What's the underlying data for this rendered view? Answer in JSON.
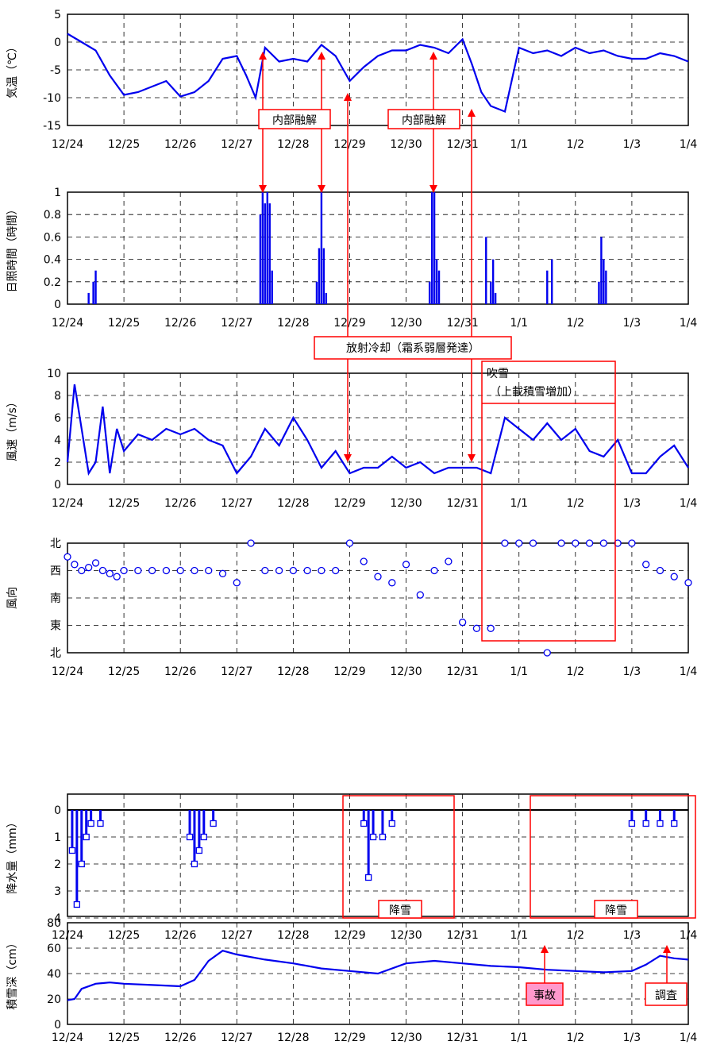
{
  "x_tick_labels": [
    "12/24",
    "12/25",
    "12/26",
    "12/27",
    "12/28",
    "12/29",
    "12/30",
    "12/31",
    "1/1",
    "1/2",
    "1/3",
    "1/4"
  ],
  "colors": {
    "series": "#0000ee",
    "annotation": "#ff0000",
    "accident_fill": "#ff99cc"
  },
  "annotations": {
    "internal_melt_1": "内部融解",
    "internal_melt_2": "内部融解",
    "radiative_cooling": "放射冷却（霜系弱層発達）",
    "blowing_snow_line1": "吹雪",
    "blowing_snow_line2": "（上載積雪増加）",
    "snowfall_1": "降雪",
    "snowfall_2": "降雪",
    "accident": "事故",
    "survey": "調査"
  },
  "chart_data": [
    {
      "id": "temperature",
      "type": "line",
      "ylabel": "気温（℃）",
      "ylim": [
        -15,
        5
      ],
      "yticks": [
        "5",
        "0",
        "-5",
        "-10",
        "-15"
      ],
      "x": [
        "12/24 00:00",
        "12/24 06:00",
        "12/24 12:00",
        "12/24 18:00",
        "12/25 00:00",
        "12/25 06:00",
        "12/25 12:00",
        "12/25 18:00",
        "12/26 00:00",
        "12/26 06:00",
        "12/26 12:00",
        "12/26 18:00",
        "12/27 00:00",
        "12/27 04:00",
        "12/27 08:00",
        "12/27 12:00",
        "12/27 18:00",
        "12/28 00:00",
        "12/28 06:00",
        "12/28 12:00",
        "12/28 18:00",
        "12/29 00:00",
        "12/29 06:00",
        "12/29 12:00",
        "12/29 18:00",
        "12/30 00:00",
        "12/30 06:00",
        "12/30 12:00",
        "12/30 18:00",
        "12/31 00:00",
        "12/31 04:00",
        "12/31 08:00",
        "12/31 12:00",
        "12/31 18:00",
        "1/1 00:00",
        "1/1 06:00",
        "1/1 12:00",
        "1/1 18:00",
        "1/2 00:00",
        "1/2 06:00",
        "1/2 12:00",
        "1/2 18:00",
        "1/3 00:00",
        "1/3 06:00",
        "1/3 12:00",
        "1/3 18:00",
        "1/4 00:00"
      ],
      "y": [
        1.5,
        0,
        -1.5,
        -6,
        -9.5,
        -9,
        -8,
        -7,
        -9.8,
        -9,
        -7,
        -3,
        -2.5,
        -6,
        -10,
        -1,
        -3.5,
        -3,
        -3.5,
        -0.5,
        -2.5,
        -7,
        -4.5,
        -2.5,
        -1.5,
        -1.5,
        -0.5,
        -1,
        -2,
        0.5,
        -4,
        -9,
        -11.5,
        -12.5,
        -1,
        -2,
        -1.5,
        -2.5,
        -1,
        -2,
        -1.5,
        -2.5,
        -3,
        -3,
        -2,
        -2.5,
        -3.5
      ]
    },
    {
      "id": "sunshine",
      "type": "bar",
      "ylabel": "日照時間（時間）",
      "ylim": [
        0,
        1
      ],
      "yticks": [
        "1",
        "0.8",
        "0.6",
        "0.4",
        "0.2",
        "0"
      ],
      "x": [
        "12/24 09:00",
        "12/24 11:00",
        "12/24 12:00",
        "12/27 10:00",
        "12/27 11:00",
        "12/27 12:00",
        "12/27 13:00",
        "12/27 14:00",
        "12/27 15:00",
        "12/28 10:00",
        "12/28 11:00",
        "12/28 12:00",
        "12/28 13:00",
        "12/28 14:00",
        "12/30 10:00",
        "12/30 11:00",
        "12/30 12:00",
        "12/30 13:00",
        "12/30 14:00",
        "12/31 10:00",
        "12/31 12:00",
        "12/31 13:00",
        "12/31 14:00",
        "1/1 12:00",
        "1/1 14:00",
        "1/2 10:00",
        "1/2 11:00",
        "1/2 12:00",
        "1/2 13:00"
      ],
      "y": [
        0.1,
        0.2,
        0.3,
        0.8,
        1,
        0.9,
        1,
        0.9,
        0.3,
        0.2,
        0.5,
        1,
        0.5,
        0.1,
        0.2,
        1,
        1,
        0.4,
        0.3,
        0.6,
        0.2,
        0.4,
        0.1,
        0.3,
        0.4,
        0.2,
        0.6,
        0.4,
        0.3
      ]
    },
    {
      "id": "wind_speed",
      "type": "line",
      "ylabel": "風速（m/s）",
      "ylim": [
        0,
        10
      ],
      "yticks": [
        "10",
        "8",
        "6",
        "4",
        "2",
        "0"
      ],
      "x": [
        "12/24 00:00",
        "12/24 03:00",
        "12/24 06:00",
        "12/24 09:00",
        "12/24 12:00",
        "12/24 15:00",
        "12/24 18:00",
        "12/24 21:00",
        "12/25 00:00",
        "12/25 06:00",
        "12/25 12:00",
        "12/25 18:00",
        "12/26 00:00",
        "12/26 06:00",
        "12/26 12:00",
        "12/26 18:00",
        "12/27 00:00",
        "12/27 06:00",
        "12/27 12:00",
        "12/27 18:00",
        "12/28 00:00",
        "12/28 06:00",
        "12/28 12:00",
        "12/28 18:00",
        "12/29 00:00",
        "12/29 06:00",
        "12/29 12:00",
        "12/29 18:00",
        "12/30 00:00",
        "12/30 06:00",
        "12/30 12:00",
        "12/30 18:00",
        "12/31 00:00",
        "12/31 06:00",
        "12/31 12:00",
        "12/31 18:00",
        "1/1 00:00",
        "1/1 06:00",
        "1/1 12:00",
        "1/1 18:00",
        "1/2 00:00",
        "1/2 06:00",
        "1/2 12:00",
        "1/2 18:00",
        "1/3 00:00",
        "1/3 06:00",
        "1/3 12:00",
        "1/3 18:00",
        "1/4 00:00"
      ],
      "y": [
        2,
        9,
        5,
        1,
        2,
        7,
        1,
        5,
        3,
        4.5,
        4,
        5,
        4.5,
        5,
        4,
        3.5,
        1,
        2.5,
        5,
        3.5,
        6,
        4,
        1.5,
        3,
        1,
        1.5,
        1.5,
        2.5,
        1.5,
        2,
        1,
        1.5,
        1.5,
        1.5,
        1,
        6,
        5,
        4,
        5.5,
        4,
        5,
        3,
        2.5,
        4,
        1,
        1,
        2.5,
        3.5,
        1.5
      ]
    },
    {
      "id": "wind_direction",
      "type": "scatter",
      "ylabel": "風向",
      "yticks": [
        "北",
        "西",
        "南",
        "東",
        "北"
      ],
      "x": [
        "12/24 00:00",
        "12/24 03:00",
        "12/24 06:00",
        "12/24 09:00",
        "12/24 12:00",
        "12/24 15:00",
        "12/24 18:00",
        "12/24 21:00",
        "12/25 00:00",
        "12/25 06:00",
        "12/25 12:00",
        "12/25 18:00",
        "12/26 00:00",
        "12/26 06:00",
        "12/26 12:00",
        "12/26 18:00",
        "12/27 00:00",
        "12/27 06:00",
        "12/27 12:00",
        "12/27 18:00",
        "12/28 00:00",
        "12/28 06:00",
        "12/28 12:00",
        "12/28 18:00",
        "12/29 00:00",
        "12/29 06:00",
        "12/29 12:00",
        "12/29 18:00",
        "12/30 00:00",
        "12/30 06:00",
        "12/30 12:00",
        "12/30 18:00",
        "12/31 00:00",
        "12/31 06:00",
        "12/31 12:00",
        "12/31 18:00",
        "1/1 00:00",
        "1/1 06:00",
        "1/1 12:00",
        "1/1 18:00",
        "1/2 00:00",
        "1/2 06:00",
        "1/2 12:00",
        "1/2 18:00",
        "1/3 00:00",
        "1/3 06:00",
        "1/3 12:00",
        "1/3 18:00",
        "1/4 00:00"
      ],
      "y": [
        315,
        290,
        270,
        280,
        295,
        270,
        260,
        250,
        270,
        270,
        270,
        270,
        270,
        270,
        270,
        260,
        230,
        360,
        270,
        270,
        270,
        270,
        270,
        270,
        360,
        300,
        250,
        230,
        290,
        190,
        270,
        300,
        100,
        80,
        80,
        360,
        360,
        360,
        0,
        360,
        360,
        360,
        360,
        360,
        360,
        290,
        270,
        250,
        230
      ]
    },
    {
      "id": "precipitation",
      "type": "bar",
      "ylabel": "降水量（mm）",
      "ylim": [
        0,
        4.5
      ],
      "yticks": [
        "0",
        "1",
        "2",
        "3",
        "4"
      ],
      "x": [
        "12/24 02:00",
        "12/24 04:00",
        "12/24 06:00",
        "12/24 08:00",
        "12/24 10:00",
        "12/24 14:00",
        "12/26 04:00",
        "12/26 06:00",
        "12/26 08:00",
        "12/26 10:00",
        "12/26 14:00",
        "12/29 06:00",
        "12/29 08:00",
        "12/29 10:00",
        "12/29 14:00",
        "12/29 18:00",
        "1/3 00:00",
        "1/3 06:00",
        "1/3 12:00",
        "1/3 18:00"
      ],
      "y": [
        1.5,
        3.5,
        2,
        1,
        0.5,
        0.5,
        1,
        2,
        1.5,
        1,
        0.5,
        0.5,
        2.5,
        1,
        1,
        0.5,
        0.5,
        0.5,
        0.5,
        0.5
      ]
    },
    {
      "id": "snow_depth",
      "type": "line",
      "ylabel": "積雪深（cm）",
      "ylim": [
        0,
        80
      ],
      "yticks": [
        "80",
        "60",
        "40",
        "20",
        "0"
      ],
      "x": [
        "12/24 00:00",
        "12/24 03:00",
        "12/24 06:00",
        "12/24 12:00",
        "12/24 18:00",
        "12/25 00:00",
        "12/25 12:00",
        "12/26 00:00",
        "12/26 06:00",
        "12/26 12:00",
        "12/26 18:00",
        "12/27 00:00",
        "12/27 12:00",
        "12/28 00:00",
        "12/28 12:00",
        "12/29 00:00",
        "12/29 12:00",
        "12/30 00:00",
        "12/30 12:00",
        "12/31 00:00",
        "12/31 12:00",
        "1/1 00:00",
        "1/1 12:00",
        "1/2 00:00",
        "1/2 12:00",
        "1/3 00:00",
        "1/3 06:00",
        "1/3 12:00",
        "1/3 18:00",
        "1/4 00:00"
      ],
      "y": [
        19,
        20,
        28,
        32,
        33,
        32,
        31,
        30,
        35,
        50,
        58,
        55,
        51,
        48,
        44,
        42,
        40,
        48,
        50,
        48,
        46,
        45,
        43,
        42,
        41,
        42,
        47,
        54,
        52,
        51
      ]
    }
  ]
}
